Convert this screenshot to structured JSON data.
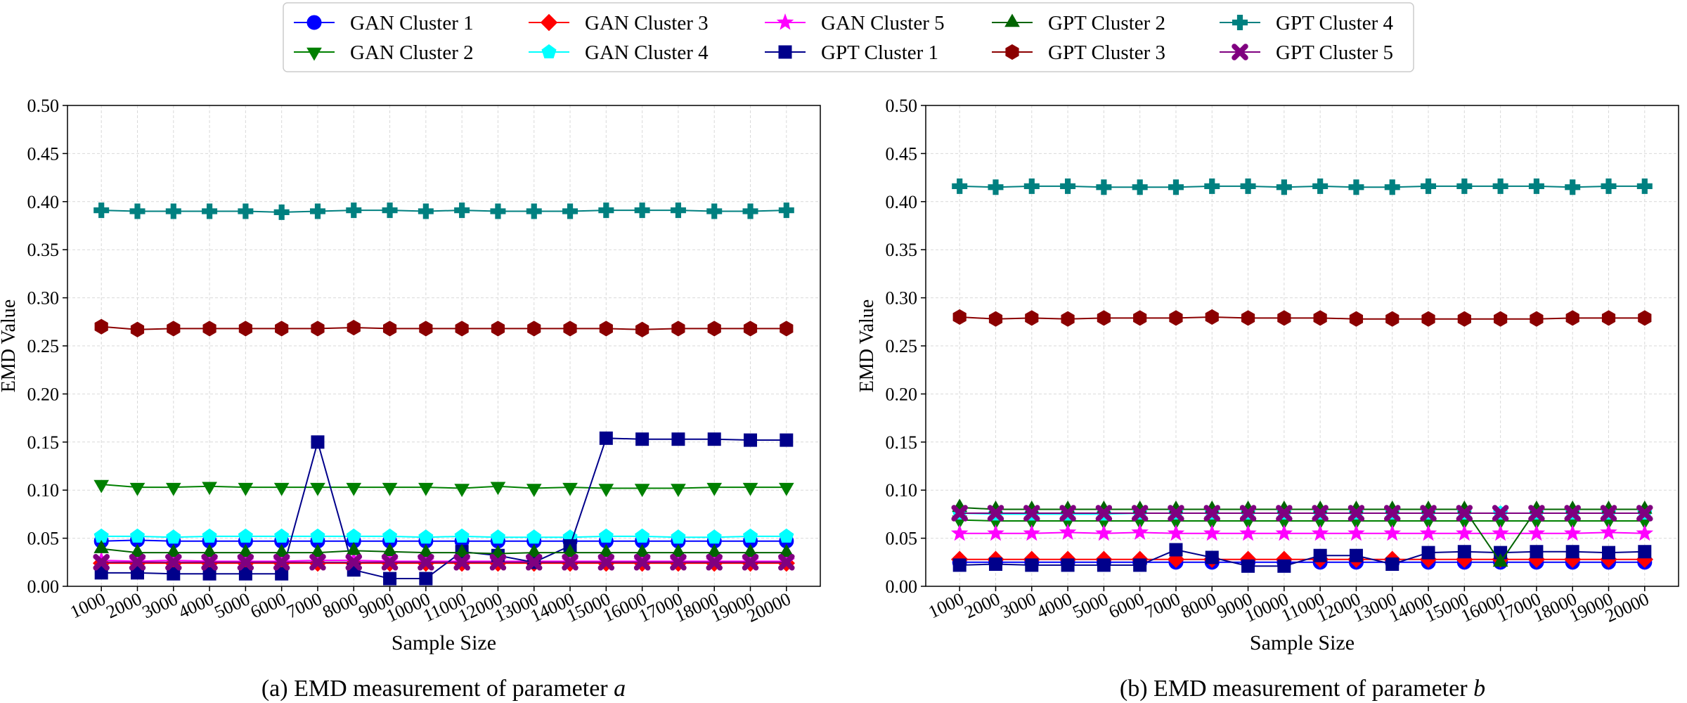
{
  "legend": {
    "entries": [
      {
        "key": "gan1",
        "label": "GAN Cluster 1"
      },
      {
        "key": "gan2",
        "label": "GAN Cluster 2"
      },
      {
        "key": "gan3",
        "label": "GAN Cluster 3"
      },
      {
        "key": "gan4",
        "label": "GAN Cluster 4"
      },
      {
        "key": "gan5",
        "label": "GAN Cluster 5"
      },
      {
        "key": "gpt1",
        "label": "GPT Cluster 1"
      },
      {
        "key": "gpt2",
        "label": "GPT Cluster 2"
      },
      {
        "key": "gpt3",
        "label": "GPT Cluster 3"
      },
      {
        "key": "gpt4",
        "label": "GPT Cluster 4"
      },
      {
        "key": "gpt5",
        "label": "GPT Cluster 5"
      }
    ]
  },
  "series_style": {
    "gan1": {
      "color": "#0000ff",
      "marker": "circle"
    },
    "gan2": {
      "color": "#008000",
      "marker": "triangle-down"
    },
    "gan3": {
      "color": "#ff0000",
      "marker": "diamond"
    },
    "gan4": {
      "color": "#00ffff",
      "marker": "pentagon"
    },
    "gan5": {
      "color": "#ff00ff",
      "marker": "star"
    },
    "gpt1": {
      "color": "#00008b",
      "marker": "square"
    },
    "gpt2": {
      "color": "#006400",
      "marker": "triangle-up"
    },
    "gpt3": {
      "color": "#8b0000",
      "marker": "hexagon"
    },
    "gpt4": {
      "color": "#008080",
      "marker": "plus"
    },
    "gpt5": {
      "color": "#800080",
      "marker": "x"
    }
  },
  "chart_data": [
    {
      "type": "line",
      "caption_prefix": "(a) EMD measurement of parameter ",
      "caption_var": "a",
      "xlabel": "Sample Size",
      "ylabel": "EMD Value",
      "ylim": [
        0,
        0.5
      ],
      "yticks": [
        "0.00",
        "0.05",
        "0.10",
        "0.15",
        "0.20",
        "0.25",
        "0.30",
        "0.35",
        "0.40",
        "0.45",
        "0.50"
      ],
      "categories": [
        "1000",
        "2000",
        "3000",
        "4000",
        "5000",
        "6000",
        "7000",
        "8000",
        "9000",
        "10000",
        "11000",
        "12000",
        "13000",
        "14000",
        "15000",
        "16000",
        "17000",
        "18000",
        "19000",
        "20000"
      ],
      "grid": true,
      "series": [
        {
          "key": "gan1",
          "name": "GAN Cluster 1",
          "values": [
            0.047,
            0.048,
            0.047,
            0.047,
            0.047,
            0.047,
            0.047,
            0.047,
            0.047,
            0.047,
            0.047,
            0.047,
            0.047,
            0.047,
            0.047,
            0.047,
            0.047,
            0.047,
            0.047,
            0.047
          ]
        },
        {
          "key": "gan2",
          "name": "GAN Cluster 2",
          "values": [
            0.106,
            0.103,
            0.103,
            0.104,
            0.103,
            0.103,
            0.103,
            0.103,
            0.103,
            0.103,
            0.102,
            0.104,
            0.102,
            0.103,
            0.102,
            0.102,
            0.102,
            0.103,
            0.103,
            0.103
          ]
        },
        {
          "key": "gan3",
          "name": "GAN Cluster 3",
          "values": [
            0.024,
            0.024,
            0.024,
            0.024,
            0.024,
            0.024,
            0.024,
            0.024,
            0.024,
            0.024,
            0.024,
            0.024,
            0.024,
            0.024,
            0.024,
            0.024,
            0.024,
            0.024,
            0.024,
            0.024
          ]
        },
        {
          "key": "gan4",
          "name": "GAN Cluster 4",
          "values": [
            0.052,
            0.052,
            0.051,
            0.052,
            0.052,
            0.052,
            0.052,
            0.052,
            0.052,
            0.051,
            0.052,
            0.051,
            0.051,
            0.051,
            0.052,
            0.052,
            0.051,
            0.051,
            0.052,
            0.052
          ]
        },
        {
          "key": "gan5",
          "name": "GAN Cluster 5",
          "values": [
            0.027,
            0.026,
            0.027,
            0.026,
            0.026,
            0.026,
            0.027,
            0.027,
            0.026,
            0.026,
            0.026,
            0.026,
            0.026,
            0.026,
            0.026,
            0.026,
            0.026,
            0.026,
            0.026,
            0.026
          ]
        },
        {
          "key": "gpt1",
          "name": "GPT Cluster 1",
          "values": [
            0.014,
            0.014,
            0.013,
            0.013,
            0.013,
            0.013,
            0.15,
            0.017,
            0.008,
            0.008,
            0.036,
            0.032,
            0.025,
            0.042,
            0.154,
            0.153,
            0.153,
            0.153,
            0.152,
            0.152
          ]
        },
        {
          "key": "gpt2",
          "name": "GPT Cluster 2",
          "values": [
            0.039,
            0.035,
            0.035,
            0.035,
            0.035,
            0.035,
            0.035,
            0.037,
            0.036,
            0.035,
            0.035,
            0.034,
            0.035,
            0.035,
            0.035,
            0.035,
            0.035,
            0.035,
            0.035,
            0.035
          ]
        },
        {
          "key": "gpt3",
          "name": "GPT Cluster 3",
          "values": [
            0.27,
            0.267,
            0.268,
            0.268,
            0.268,
            0.268,
            0.268,
            0.269,
            0.268,
            0.268,
            0.268,
            0.268,
            0.268,
            0.268,
            0.268,
            0.267,
            0.268,
            0.268,
            0.268,
            0.268
          ]
        },
        {
          "key": "gpt4",
          "name": "GPT Cluster 4",
          "values": [
            0.391,
            0.39,
            0.39,
            0.39,
            0.39,
            0.389,
            0.39,
            0.391,
            0.391,
            0.39,
            0.391,
            0.39,
            0.39,
            0.39,
            0.391,
            0.391,
            0.391,
            0.39,
            0.39,
            0.391
          ]
        },
        {
          "key": "gpt5",
          "name": "GPT Cluster 5",
          "values": [
            0.025,
            0.025,
            0.025,
            0.025,
            0.025,
            0.025,
            0.025,
            0.025,
            0.025,
            0.025,
            0.025,
            0.025,
            0.025,
            0.025,
            0.025,
            0.025,
            0.025,
            0.025,
            0.025,
            0.025
          ]
        }
      ]
    },
    {
      "type": "line",
      "caption_prefix": "(b) EMD measurement of parameter ",
      "caption_var": "b",
      "xlabel": "Sample Size",
      "ylabel": "EMD Value",
      "ylim": [
        0,
        0.5
      ],
      "yticks": [
        "0.00",
        "0.05",
        "0.10",
        "0.15",
        "0.20",
        "0.25",
        "0.30",
        "0.35",
        "0.40",
        "0.45",
        "0.50"
      ],
      "categories": [
        "1000",
        "2000",
        "3000",
        "4000",
        "5000",
        "6000",
        "7000",
        "8000",
        "9000",
        "10000",
        "11000",
        "12000",
        "13000",
        "14000",
        "15000",
        "16000",
        "17000",
        "18000",
        "19000",
        "20000"
      ],
      "grid": true,
      "series": [
        {
          "key": "gan1",
          "name": "GAN Cluster 1",
          "values": [
            0.025,
            0.025,
            0.025,
            0.025,
            0.025,
            0.025,
            0.025,
            0.025,
            0.025,
            0.025,
            0.025,
            0.025,
            0.025,
            0.025,
            0.025,
            0.025,
            0.025,
            0.025,
            0.025,
            0.025
          ]
        },
        {
          "key": "gan2",
          "name": "GAN Cluster 2",
          "values": [
            0.069,
            0.068,
            0.068,
            0.068,
            0.068,
            0.068,
            0.068,
            0.068,
            0.068,
            0.068,
            0.068,
            0.068,
            0.068,
            0.068,
            0.068,
            0.068,
            0.068,
            0.068,
            0.068,
            0.068
          ]
        },
        {
          "key": "gan3",
          "name": "GAN Cluster 3",
          "values": [
            0.028,
            0.028,
            0.028,
            0.028,
            0.028,
            0.028,
            0.028,
            0.028,
            0.028,
            0.028,
            0.028,
            0.028,
            0.028,
            0.028,
            0.028,
            0.028,
            0.028,
            0.028,
            0.028,
            0.028
          ]
        },
        {
          "key": "gan4",
          "name": "GAN Cluster 4",
          "values": [
            0.076,
            0.075,
            0.075,
            0.075,
            0.075,
            0.076,
            0.076,
            0.076,
            0.076,
            0.076,
            0.076,
            0.076,
            0.076,
            0.076,
            0.076,
            0.076,
            0.076,
            0.076,
            0.076,
            0.076
          ]
        },
        {
          "key": "gan5",
          "name": "GAN Cluster 5",
          "values": [
            0.055,
            0.055,
            0.055,
            0.056,
            0.055,
            0.056,
            0.055,
            0.055,
            0.055,
            0.055,
            0.055,
            0.055,
            0.055,
            0.055,
            0.055,
            0.055,
            0.055,
            0.055,
            0.056,
            0.055
          ]
        },
        {
          "key": "gpt1",
          "name": "GPT Cluster 1",
          "values": [
            0.022,
            0.023,
            0.022,
            0.022,
            0.022,
            0.022,
            0.038,
            0.03,
            0.021,
            0.021,
            0.032,
            0.032,
            0.023,
            0.035,
            0.036,
            0.035,
            0.036,
            0.036,
            0.035,
            0.036
          ]
        },
        {
          "key": "gpt2",
          "name": "GPT Cluster 2",
          "values": [
            0.082,
            0.08,
            0.08,
            0.08,
            0.08,
            0.08,
            0.08,
            0.08,
            0.08,
            0.08,
            0.08,
            0.08,
            0.08,
            0.08,
            0.08,
            0.025,
            0.08,
            0.08,
            0.08,
            0.08
          ]
        },
        {
          "key": "gpt3",
          "name": "GPT Cluster 3",
          "values": [
            0.28,
            0.278,
            0.279,
            0.278,
            0.279,
            0.279,
            0.279,
            0.28,
            0.279,
            0.279,
            0.279,
            0.278,
            0.278,
            0.278,
            0.278,
            0.278,
            0.278,
            0.279,
            0.279,
            0.279
          ]
        },
        {
          "key": "gpt4",
          "name": "GPT Cluster 4",
          "values": [
            0.416,
            0.415,
            0.416,
            0.416,
            0.415,
            0.415,
            0.415,
            0.416,
            0.416,
            0.415,
            0.416,
            0.415,
            0.415,
            0.416,
            0.416,
            0.416,
            0.416,
            0.415,
            0.416,
            0.416
          ]
        },
        {
          "key": "gpt5",
          "name": "GPT Cluster 5",
          "values": [
            0.076,
            0.076,
            0.076,
            0.076,
            0.076,
            0.076,
            0.076,
            0.076,
            0.076,
            0.076,
            0.076,
            0.076,
            0.076,
            0.076,
            0.076,
            0.076,
            0.076,
            0.076,
            0.076,
            0.076
          ]
        }
      ]
    }
  ]
}
